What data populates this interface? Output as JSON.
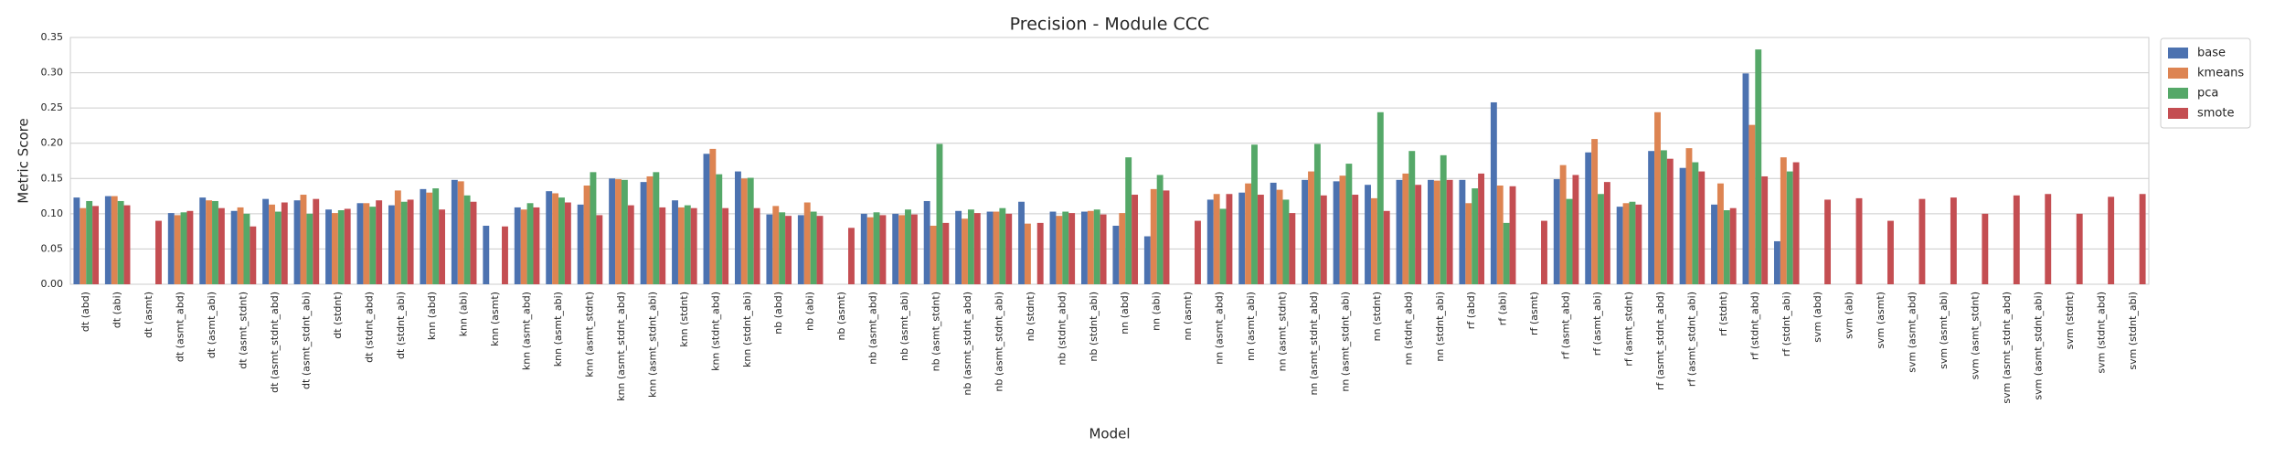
{
  "chart_data": {
    "type": "bar",
    "title": "Precision - Module CCC",
    "x_label": "Model",
    "y_label": "Metric Score",
    "categories": [
      "dt (abd)",
      "dt (abi)",
      "dt (asmt)",
      "dt (asmt_abd)",
      "dt (asmt_abi)",
      "dt (asmt_stdnt)",
      "dt (asmt_stdnt_abd)",
      "dt (asmt_stdnt_abi)",
      "dt (stdnt)",
      "dt (stdnt_abd)",
      "dt (stdnt_abi)",
      "knn (abd)",
      "knn (abi)",
      "knn (asmt)",
      "knn (asmt_abd)",
      "knn (asmt_abi)",
      "knn (asmt_stdnt)",
      "knn (asmt_stdnt_abd)",
      "knn (asmt_stdnt_abi)",
      "knn (stdnt)",
      "knn (stdnt_abd)",
      "knn (stdnt_abi)",
      "nb (abd)",
      "nb (abi)",
      "nb (asmt)",
      "nb (asmt_abd)",
      "nb (asmt_abi)",
      "nb (asmt_stdnt)",
      "nb (asmt_stdnt_abd)",
      "nb (asmt_stdnt_abi)",
      "nb (stdnt)",
      "nb (stdnt_abd)",
      "nb (stdnt_abi)",
      "nn (abd)",
      "nn (abi)",
      "nn (asmt)",
      "nn (asmt_abd)",
      "nn (asmt_abi)",
      "nn (asmt_stdnt)",
      "nn (asmt_stdnt_abd)",
      "nn (asmt_stdnt_abi)",
      "nn (stdnt)",
      "nn (stdnt_abd)",
      "nn (stdnt_abi)",
      "rf (abd)",
      "rf (abi)",
      "rf (asmt)",
      "rf (asmt_abd)",
      "rf (asmt_abi)",
      "rf (asmt_stdnt)",
      "rf (asmt_stdnt_abd)",
      "rf (asmt_stdnt_abi)",
      "rf (stdnt)",
      "rf (stdnt_abd)",
      "rf (stdnt_abi)",
      "svm (abd)",
      "svm (abi)",
      "svm (asmt)",
      "svm (asmt_abd)",
      "svm (asmt_abi)",
      "svm (asmt_stdnt)",
      "svm (asmt_stdnt_abd)",
      "svm (asmt_stdnt_abi)",
      "svm (stdnt)",
      "svm (stdnt_abd)",
      "svm (stdnt_abi)"
    ],
    "series": [
      {
        "name": "base",
        "color": "#4c72b0",
        "values": [
          0.123,
          0.125,
          null,
          0.101,
          0.123,
          0.104,
          0.121,
          0.119,
          0.106,
          0.115,
          0.112,
          0.135,
          0.148,
          0.083,
          0.109,
          0.132,
          0.113,
          0.15,
          0.145,
          0.119,
          0.185,
          0.16,
          0.099,
          0.098,
          null,
          0.1,
          0.1,
          0.118,
          0.104,
          0.103,
          0.117,
          0.103,
          0.103,
          0.083,
          0.068,
          null,
          0.12,
          0.13,
          0.144,
          0.148,
          0.146,
          0.141,
          0.148,
          0.148,
          0.148,
          0.258,
          null,
          0.149,
          0.187,
          0.11,
          0.189,
          0.165,
          0.113,
          0.299,
          0.061,
          null,
          null,
          null,
          null,
          null,
          null,
          null,
          null,
          null,
          null,
          null
        ]
      },
      {
        "name": "kmeans",
        "color": "#dd8452",
        "values": [
          0.108,
          0.125,
          null,
          0.098,
          0.119,
          0.109,
          0.113,
          0.127,
          0.101,
          0.115,
          0.133,
          0.13,
          0.146,
          null,
          0.106,
          0.129,
          0.14,
          0.149,
          0.153,
          0.109,
          0.192,
          0.15,
          0.111,
          0.116,
          null,
          0.095,
          0.098,
          0.083,
          0.093,
          0.103,
          0.086,
          0.097,
          0.104,
          0.101,
          0.135,
          null,
          0.128,
          0.143,
          0.134,
          0.16,
          0.154,
          0.122,
          0.157,
          0.147,
          0.115,
          0.14,
          null,
          0.169,
          0.206,
          0.115,
          0.244,
          0.193,
          0.143,
          0.226,
          0.18,
          null,
          null,
          null,
          null,
          null,
          null,
          null,
          null,
          null,
          null,
          null
        ]
      },
      {
        "name": "pca",
        "color": "#55a868",
        "values": [
          0.118,
          0.118,
          null,
          0.102,
          0.118,
          0.1,
          0.103,
          0.1,
          0.105,
          0.11,
          0.117,
          0.136,
          0.126,
          null,
          0.115,
          0.123,
          0.159,
          0.148,
          0.159,
          0.112,
          0.156,
          0.151,
          0.102,
          0.103,
          null,
          0.102,
          0.106,
          0.199,
          0.106,
          0.108,
          null,
          0.103,
          0.106,
          0.18,
          0.155,
          null,
          0.107,
          0.198,
          0.12,
          0.199,
          0.171,
          0.244,
          0.189,
          0.183,
          0.136,
          0.087,
          null,
          0.121,
          0.128,
          0.117,
          0.19,
          0.173,
          0.105,
          0.333,
          0.16,
          null,
          null,
          null,
          null,
          null,
          null,
          null,
          null,
          null,
          null,
          null
        ]
      },
      {
        "name": "smote",
        "color": "#c44e52",
        "values": [
          0.111,
          0.112,
          0.09,
          0.104,
          0.108,
          0.082,
          0.116,
          0.121,
          0.107,
          0.119,
          0.12,
          0.106,
          0.117,
          0.082,
          0.109,
          0.116,
          0.098,
          0.112,
          0.109,
          0.108,
          0.108,
          0.108,
          0.097,
          0.097,
          0.08,
          0.098,
          0.099,
          0.087,
          0.101,
          0.1,
          0.087,
          0.101,
          0.099,
          0.127,
          0.133,
          0.09,
          0.128,
          0.127,
          0.101,
          0.126,
          0.127,
          0.104,
          0.141,
          0.148,
          0.157,
          0.139,
          0.09,
          0.155,
          0.145,
          0.113,
          0.178,
          0.16,
          0.108,
          0.153,
          0.173,
          0.12,
          0.122,
          0.09,
          0.121,
          0.123,
          0.1,
          0.126,
          0.128,
          0.1,
          0.124,
          0.128
        ]
      }
    ],
    "ylim": [
      0,
      0.35
    ],
    "yticks": [
      {
        "value": 0,
        "label": "0.00"
      },
      {
        "value": 0.05,
        "label": "0.05"
      },
      {
        "value": 0.1,
        "label": "0.10"
      },
      {
        "value": 0.15,
        "label": "0.15"
      },
      {
        "value": 0.2,
        "label": "0.20"
      },
      {
        "value": 0.25,
        "label": "0.25"
      },
      {
        "value": 0.3,
        "label": "0.30"
      },
      {
        "value": 0.35,
        "label": "0.35"
      }
    ],
    "grid": true,
    "legend": "outside upper right"
  }
}
